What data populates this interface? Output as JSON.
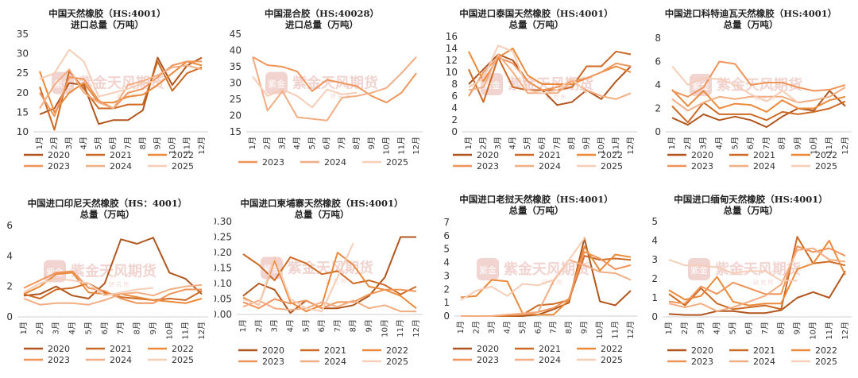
{
  "colors": {
    "2020": "#b0561e",
    "2021": "#cd6a25",
    "2022": "#ea8a3a",
    "2023": "#f0955a",
    "2024": "#f3ad82",
    "2025": "#f6cdb6"
  },
  "watermark": {
    "text": "紫金天风期货",
    "sub": "研 究 所",
    "seal": "紫金"
  },
  "chart_data": [
    {
      "type": "line",
      "title": "中国天然橡胶（HS:4001）",
      "subtitle": "进口总量（万吨）",
      "categories": [
        "1月",
        "2月",
        "3月",
        "4月",
        "5月",
        "6月",
        "7月",
        "8月",
        "9月",
        "10月",
        "11月",
        "12月"
      ],
      "ylim": [
        10,
        35
      ],
      "yticks": [
        10,
        15,
        20,
        25,
        30,
        35
      ],
      "series": [
        {
          "name": "2020",
          "values": [
            14.5,
            16,
            22.5,
            22,
            12,
            13,
            13,
            15.5,
            29,
            22,
            27,
            29
          ]
        },
        {
          "name": "2021",
          "values": [
            21.5,
            10.5,
            25.5,
            21,
            16,
            16,
            17,
            17,
            28,
            20.5,
            25,
            26.5
          ]
        },
        {
          "name": "2022",
          "values": [
            25.5,
            15,
            20,
            22.5,
            17.5,
            17.5,
            19,
            19.5,
            22,
            25,
            28,
            27
          ]
        },
        {
          "name": "2023",
          "values": [
            20,
            14,
            24,
            23.5,
            18,
            16,
            20,
            21,
            24,
            27,
            28,
            28
          ]
        },
        {
          "name": "2024",
          "values": [
            16,
            22,
            26,
            20,
            17.5,
            16,
            22,
            23,
            24.5,
            26.5,
            27,
            26
          ]
        },
        {
          "name": "2025",
          "values": [
            23.5,
            25,
            31,
            28,
            19,
            20,
            21,
            22.5,
            23,
            null,
            null,
            null
          ]
        }
      ]
    },
    {
      "type": "line",
      "title": "中国混合胶（HS:40028）",
      "subtitle": "进口总量（万吨）",
      "categories": [
        "1月",
        "2月",
        "3月",
        "4月",
        "5月",
        "6月",
        "7月",
        "8月",
        "9月",
        "10月",
        "11月",
        "12月"
      ],
      "ylim": [
        15,
        45
      ],
      "yticks": [
        15,
        20,
        25,
        30,
        35,
        40,
        45
      ],
      "series": [
        {
          "name": "2023",
          "values": [
            38,
            35.5,
            35,
            33.5,
            27.5,
            31,
            30,
            29,
            26,
            24,
            27,
            33
          ]
        },
        {
          "name": "2024",
          "values": [
            38,
            21.5,
            27.5,
            19.5,
            19,
            18.5,
            25.5,
            26,
            27,
            28.5,
            33,
            38
          ]
        },
        {
          "name": "2025",
          "values": [
            32,
            26,
            28,
            26,
            22.5,
            28,
            26.5,
            27,
            null,
            null,
            null,
            null
          ]
        }
      ]
    },
    {
      "type": "line",
      "title": "中国进口泰国天然橡胶（HS:4001）",
      "subtitle": "总量（万吨）",
      "categories": [
        "1月",
        "2月",
        "3月",
        "4月",
        "5月",
        "6月",
        "7月",
        "8月",
        "9月",
        "10月",
        "11月",
        "12月"
      ],
      "ylim": [
        0,
        16
      ],
      "yticks": [
        0,
        2,
        4,
        6,
        8,
        10,
        12,
        14,
        16
      ],
      "series": [
        {
          "name": "2020",
          "values": [
            8,
            10.5,
            13,
            12,
            8.5,
            7,
            4.5,
            5,
            7,
            5.5,
            8.5,
            11
          ]
        },
        {
          "name": "2021",
          "values": [
            10.5,
            5,
            12.5,
            7.5,
            7,
            7,
            7,
            7.5,
            11,
            11,
            13.5,
            13
          ]
        },
        {
          "name": "2022",
          "values": [
            13.5,
            8.5,
            12.5,
            14,
            9.5,
            8,
            8,
            8,
            9,
            10,
            11,
            10
          ]
        },
        {
          "name": "2023",
          "values": [
            6,
            10,
            12.5,
            11.5,
            8.5,
            7,
            7.5,
            8.5,
            9,
            10,
            11.5,
            11
          ]
        },
        {
          "name": "2024",
          "values": [
            7,
            7.5,
            13,
            10,
            6.5,
            6.5,
            6.5,
            8.5,
            7,
            6,
            5.5,
            6.5
          ]
        },
        {
          "name": "2025",
          "values": [
            7.5,
            9,
            14.5,
            13.5,
            7,
            6.5,
            7,
            9,
            6.5,
            null,
            null,
            null
          ]
        }
      ]
    },
    {
      "type": "line",
      "title": "中国进口科特迪瓦天然橡胶（HS:4001）",
      "subtitle": "总量（万吨）",
      "categories": [
        "1月",
        "2月",
        "3月",
        "4月",
        "5月",
        "6月",
        "7月",
        "8月",
        "9月",
        "10月",
        "11月",
        "12月"
      ],
      "ylim": [
        0,
        8
      ],
      "yticks": [
        0,
        2,
        4,
        6,
        8
      ],
      "series": [
        {
          "name": "2020",
          "values": [
            1.2,
            0.6,
            1.5,
            1,
            1.3,
            1,
            0.4,
            1.3,
            2,
            1.8,
            3.5,
            2.2
          ]
        },
        {
          "name": "2021",
          "values": [
            2.2,
            0.8,
            2.5,
            1.5,
            1.5,
            1.5,
            1,
            1.7,
            1.5,
            1.7,
            2,
            2.6
          ]
        },
        {
          "name": "2022",
          "values": [
            3.6,
            2.2,
            3.5,
            2,
            2.4,
            2.3,
            1.7,
            2.7,
            2,
            2,
            2.7,
            3
          ]
        },
        {
          "name": "2023",
          "values": [
            3.5,
            3,
            3.8,
            6,
            5.8,
            4,
            4.2,
            4.2,
            3.8,
            3.5,
            3.6,
            4
          ]
        },
        {
          "name": "2024",
          "values": [
            2.8,
            1.8,
            2.5,
            3,
            2.8,
            3,
            3,
            3,
            2.5,
            2.7,
            3,
            3.8
          ]
        },
        {
          "name": "2025",
          "values": [
            5.6,
            4,
            4.6,
            4.5,
            4,
            3.2,
            2.6,
            3.5,
            2.5,
            null,
            null,
            null
          ]
        }
      ]
    },
    {
      "type": "line",
      "title": "中国进口印尼天然橡胶（HS：4001）",
      "subtitle": "总量（万吨）",
      "categories": [
        "1月",
        "2月",
        "3月",
        "4月",
        "5月",
        "6月",
        "7月",
        "8月",
        "9月",
        "10月",
        "11月",
        "12月"
      ],
      "ylim": [
        0,
        6
      ],
      "yticks": [
        0,
        2,
        4,
        6
      ],
      "series": [
        {
          "name": "2020",
          "values": [
            1.4,
            1.5,
            2,
            1.4,
            1.2,
            2.2,
            5.1,
            4.8,
            5.2,
            2.9,
            2.5,
            1.5
          ]
        },
        {
          "name": "2021",
          "values": [
            1.5,
            1.2,
            1.8,
            1.9,
            2.2,
            1.6,
            1.3,
            1.2,
            1.1,
            1.2,
            1.1,
            1.7
          ]
        },
        {
          "name": "2022",
          "values": [
            1.5,
            2,
            2.8,
            2.9,
            1.6,
            1.5,
            1.5,
            1.3,
            1.1,
            1,
            0.9,
            1.2
          ]
        },
        {
          "name": "2023",
          "values": [
            1.9,
            2.4,
            2.9,
            3,
            1.9,
            1.7,
            1.2,
            0.9,
            0.9,
            1.5,
            1.8,
            1.8
          ]
        },
        {
          "name": "2024",
          "values": [
            1.2,
            0.8,
            0.9,
            0.9,
            0.8,
            1.1,
            1.5,
            1.6,
            1.4,
            1.8,
            2,
            2.1
          ]
        },
        {
          "name": "2025",
          "values": [
            1.6,
            2.2,
            2.5,
            2.4,
            2.2,
            1.4,
            1.6,
            1.8,
            1.9,
            null,
            null,
            null
          ]
        }
      ]
    },
    {
      "type": "line",
      "title": "中国进口柬埔寨天然橡胶（HS:4001）",
      "subtitle": "总量（万吨）",
      "categories": [
        "1月",
        "2月",
        "3月",
        "4月",
        "5月",
        "6月",
        "7月",
        "8月",
        "9月",
        "10月",
        "11月",
        "12月"
      ],
      "ylim": [
        0,
        0.3
      ],
      "yticks": [
        0,
        0.05,
        0.1,
        0.15,
        0.2,
        0.25,
        0.3
      ],
      "series": [
        {
          "name": "2020",
          "values": [
            0.06,
            0.1,
            0.08,
            0.005,
            0.045,
            0.02,
            0.02,
            0.03,
            0.06,
            0.12,
            0.25,
            0.25
          ]
        },
        {
          "name": "2021",
          "values": [
            0.195,
            0.16,
            0.11,
            0.185,
            0.165,
            0.13,
            0.14,
            0.1,
            0.11,
            0.095,
            0.065,
            0.09
          ]
        },
        {
          "name": "2022",
          "values": [
            0.055,
            0.03,
            0.175,
            0.04,
            0.01,
            0.03,
            0.2,
            0.16,
            0.09,
            0.08,
            0.06,
            0.02
          ]
        },
        {
          "name": "2023",
          "values": [
            0.04,
            0.02,
            0.05,
            0.035,
            0.045,
            0.02,
            0.04,
            0.04,
            0.065,
            0.08,
            0.08,
            0.075
          ]
        },
        {
          "name": "2024",
          "values": [
            0.025,
            0.045,
            0.02,
            0.015,
            0.02,
            0.04,
            0.025,
            0.045,
            0.02,
            0.03,
            0.01,
            0.01
          ]
        },
        {
          "name": "2025",
          "values": [
            0.05,
            0.03,
            0.185,
            0.05,
            0.02,
            0.01,
            0.12,
            0.23,
            null,
            null,
            null,
            null
          ]
        }
      ]
    },
    {
      "type": "line",
      "title": "中国进口老挝天然橡胶（HS:4001）",
      "subtitle": "总量（万吨）",
      "categories": [
        "1月",
        "2月",
        "3月",
        "4月",
        "5月",
        "6月",
        "7月",
        "8月",
        "9月",
        "10月",
        "11月",
        "12月"
      ],
      "ylim": [
        0,
        7
      ],
      "yticks": [
        0,
        1,
        2,
        3,
        4,
        5,
        6,
        7
      ],
      "series": [
        {
          "name": "2020",
          "values": [
            0,
            0,
            0,
            0,
            0,
            0.1,
            0.5,
            1,
            5.8,
            1.1,
            0.8,
            1.9
          ]
        },
        {
          "name": "2021",
          "values": [
            0,
            0,
            0,
            0,
            0.1,
            0.8,
            0.9,
            1.2,
            4.5,
            4.2,
            4.3,
            4.2
          ]
        },
        {
          "name": "2022",
          "values": [
            1.4,
            1.5,
            2.7,
            2.6,
            0.2,
            0.1,
            0.1,
            1.2,
            5.2,
            3.4,
            4.6,
            4.4
          ]
        },
        {
          "name": "2023",
          "values": [
            0,
            0,
            0,
            0.1,
            0.1,
            0.3,
            0.6,
            1.3,
            4.8,
            4.3,
            3.5,
            3.8
          ]
        },
        {
          "name": "2024",
          "values": [
            0,
            0,
            0,
            0.1,
            0.2,
            0.3,
            2.6,
            4.2,
            3.8,
            3.3,
            3.2,
            2.7
          ]
        },
        {
          "name": "2025",
          "values": [
            1.2,
            1.9,
            2.2,
            1.5,
            2.4,
            2.3,
            2.7,
            4.2,
            5.8,
            null,
            null,
            null
          ]
        }
      ]
    },
    {
      "type": "line",
      "title": "中国进口缅甸天然橡胶（HS:4001）",
      "subtitle": "总量（万吨）",
      "categories": [
        "1月",
        "2月",
        "3月",
        "4月",
        "5月",
        "6月",
        "7月",
        "8月",
        "9月",
        "10月",
        "11月",
        "12月"
      ],
      "ylim": [
        0,
        5
      ],
      "yticks": [
        0,
        1,
        2,
        3,
        4,
        5
      ],
      "series": [
        {
          "name": "2020",
          "values": [
            0.15,
            0.1,
            0.1,
            0.3,
            0.3,
            0.2,
            0.2,
            0.35,
            1,
            1.3,
            1,
            2.4
          ]
        },
        {
          "name": "2021",
          "values": [
            1.2,
            0.6,
            1.5,
            0.7,
            0.4,
            0.5,
            0.6,
            0.4,
            4.2,
            2.8,
            2.9,
            2.7
          ]
        },
        {
          "name": "2022",
          "values": [
            1.4,
            0.9,
            1.1,
            2.1,
            0.8,
            0.6,
            0.7,
            0.7,
            2.5,
            2.8,
            4,
            2.2
          ]
        },
        {
          "name": "2023",
          "values": [
            0.8,
            0.7,
            1.6,
            1.2,
            1.8,
            1.5,
            1.2,
            1.2,
            3.7,
            3.4,
            3.6,
            3.2
          ]
        },
        {
          "name": "2024",
          "values": [
            0.7,
            0.5,
            0.7,
            0.3,
            0.5,
            0.8,
            1.1,
            1.7,
            3.5,
            3.6,
            3,
            2.9
          ]
        },
        {
          "name": "2025",
          "values": [
            3,
            2.7,
            2.7,
            2.6,
            2.3,
            2.4,
            2.4,
            1.9,
            1.9,
            null,
            null,
            null
          ]
        }
      ]
    }
  ]
}
